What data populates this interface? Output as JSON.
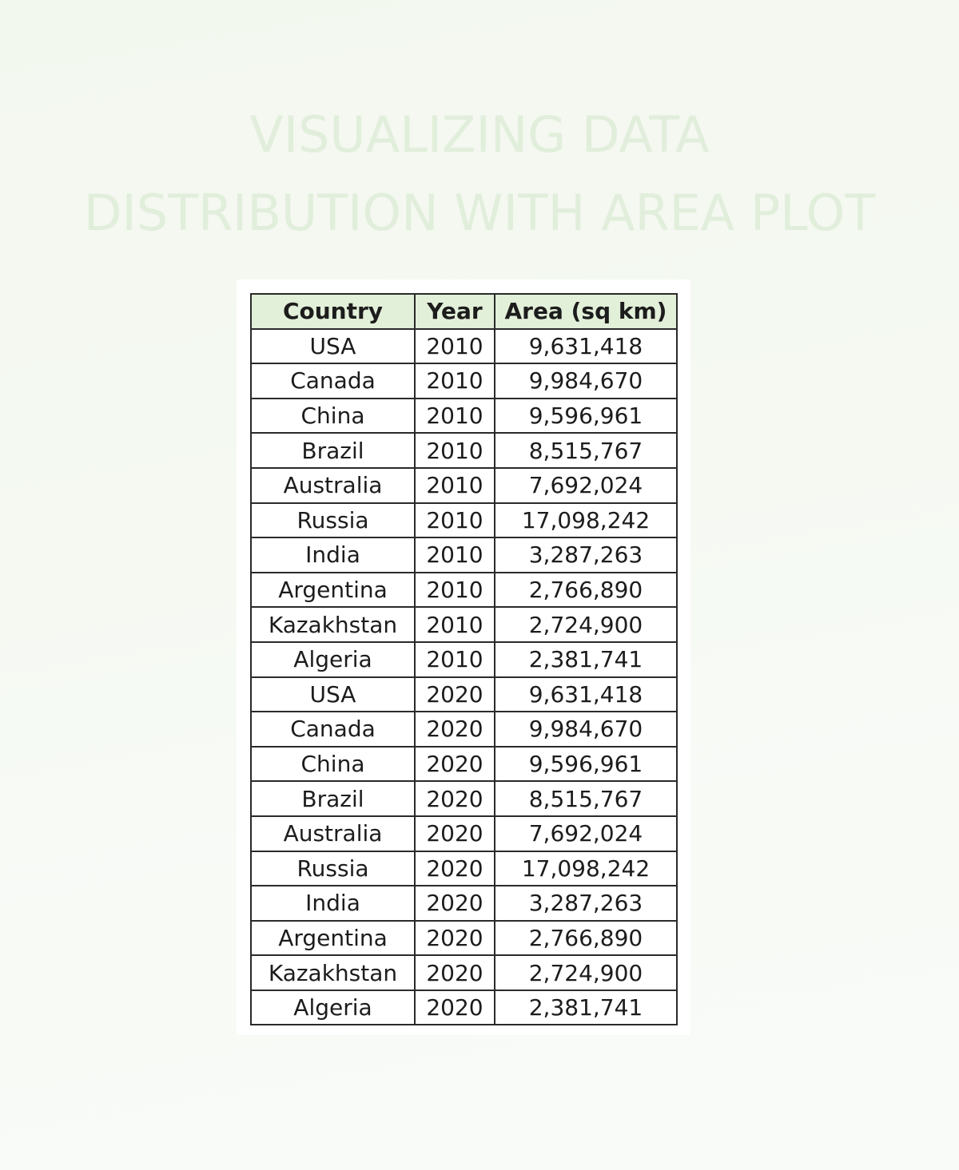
{
  "title": {
    "line1": "VISUALIZING DATA",
    "line2": "DISTRIBUTION WITH AREA PLOT"
  },
  "table": {
    "headers": [
      "Country",
      "Year",
      "Area (sq km)"
    ],
    "rows": [
      [
        "USA",
        "2010",
        "9,631,418"
      ],
      [
        "Canada",
        "2010",
        "9,984,670"
      ],
      [
        "China",
        "2010",
        "9,596,961"
      ],
      [
        "Brazil",
        "2010",
        "8,515,767"
      ],
      [
        "Australia",
        "2010",
        "7,692,024"
      ],
      [
        "Russia",
        "2010",
        "17,098,242"
      ],
      [
        "India",
        "2010",
        "3,287,263"
      ],
      [
        "Argentina",
        "2010",
        "2,766,890"
      ],
      [
        "Kazakhstan",
        "2010",
        "2,724,900"
      ],
      [
        "Algeria",
        "2010",
        "2,381,741"
      ],
      [
        "USA",
        "2020",
        "9,631,418"
      ],
      [
        "Canada",
        "2020",
        "9,984,670"
      ],
      [
        "China",
        "2020",
        "9,596,961"
      ],
      [
        "Brazil",
        "2020",
        "8,515,767"
      ],
      [
        "Australia",
        "2020",
        "7,692,024"
      ],
      [
        "Russia",
        "2020",
        "17,098,242"
      ],
      [
        "India",
        "2020",
        "3,287,263"
      ],
      [
        "Argentina",
        "2020",
        "2,766,890"
      ],
      [
        "Kazakhstan",
        "2020",
        "2,724,900"
      ],
      [
        "Algeria",
        "2020",
        "2,381,741"
      ]
    ]
  },
  "colors": {
    "title": "#e1eedb",
    "header_fill": "#e2efd9",
    "border": "#2a2a2a",
    "text": "#1c1c1c"
  }
}
